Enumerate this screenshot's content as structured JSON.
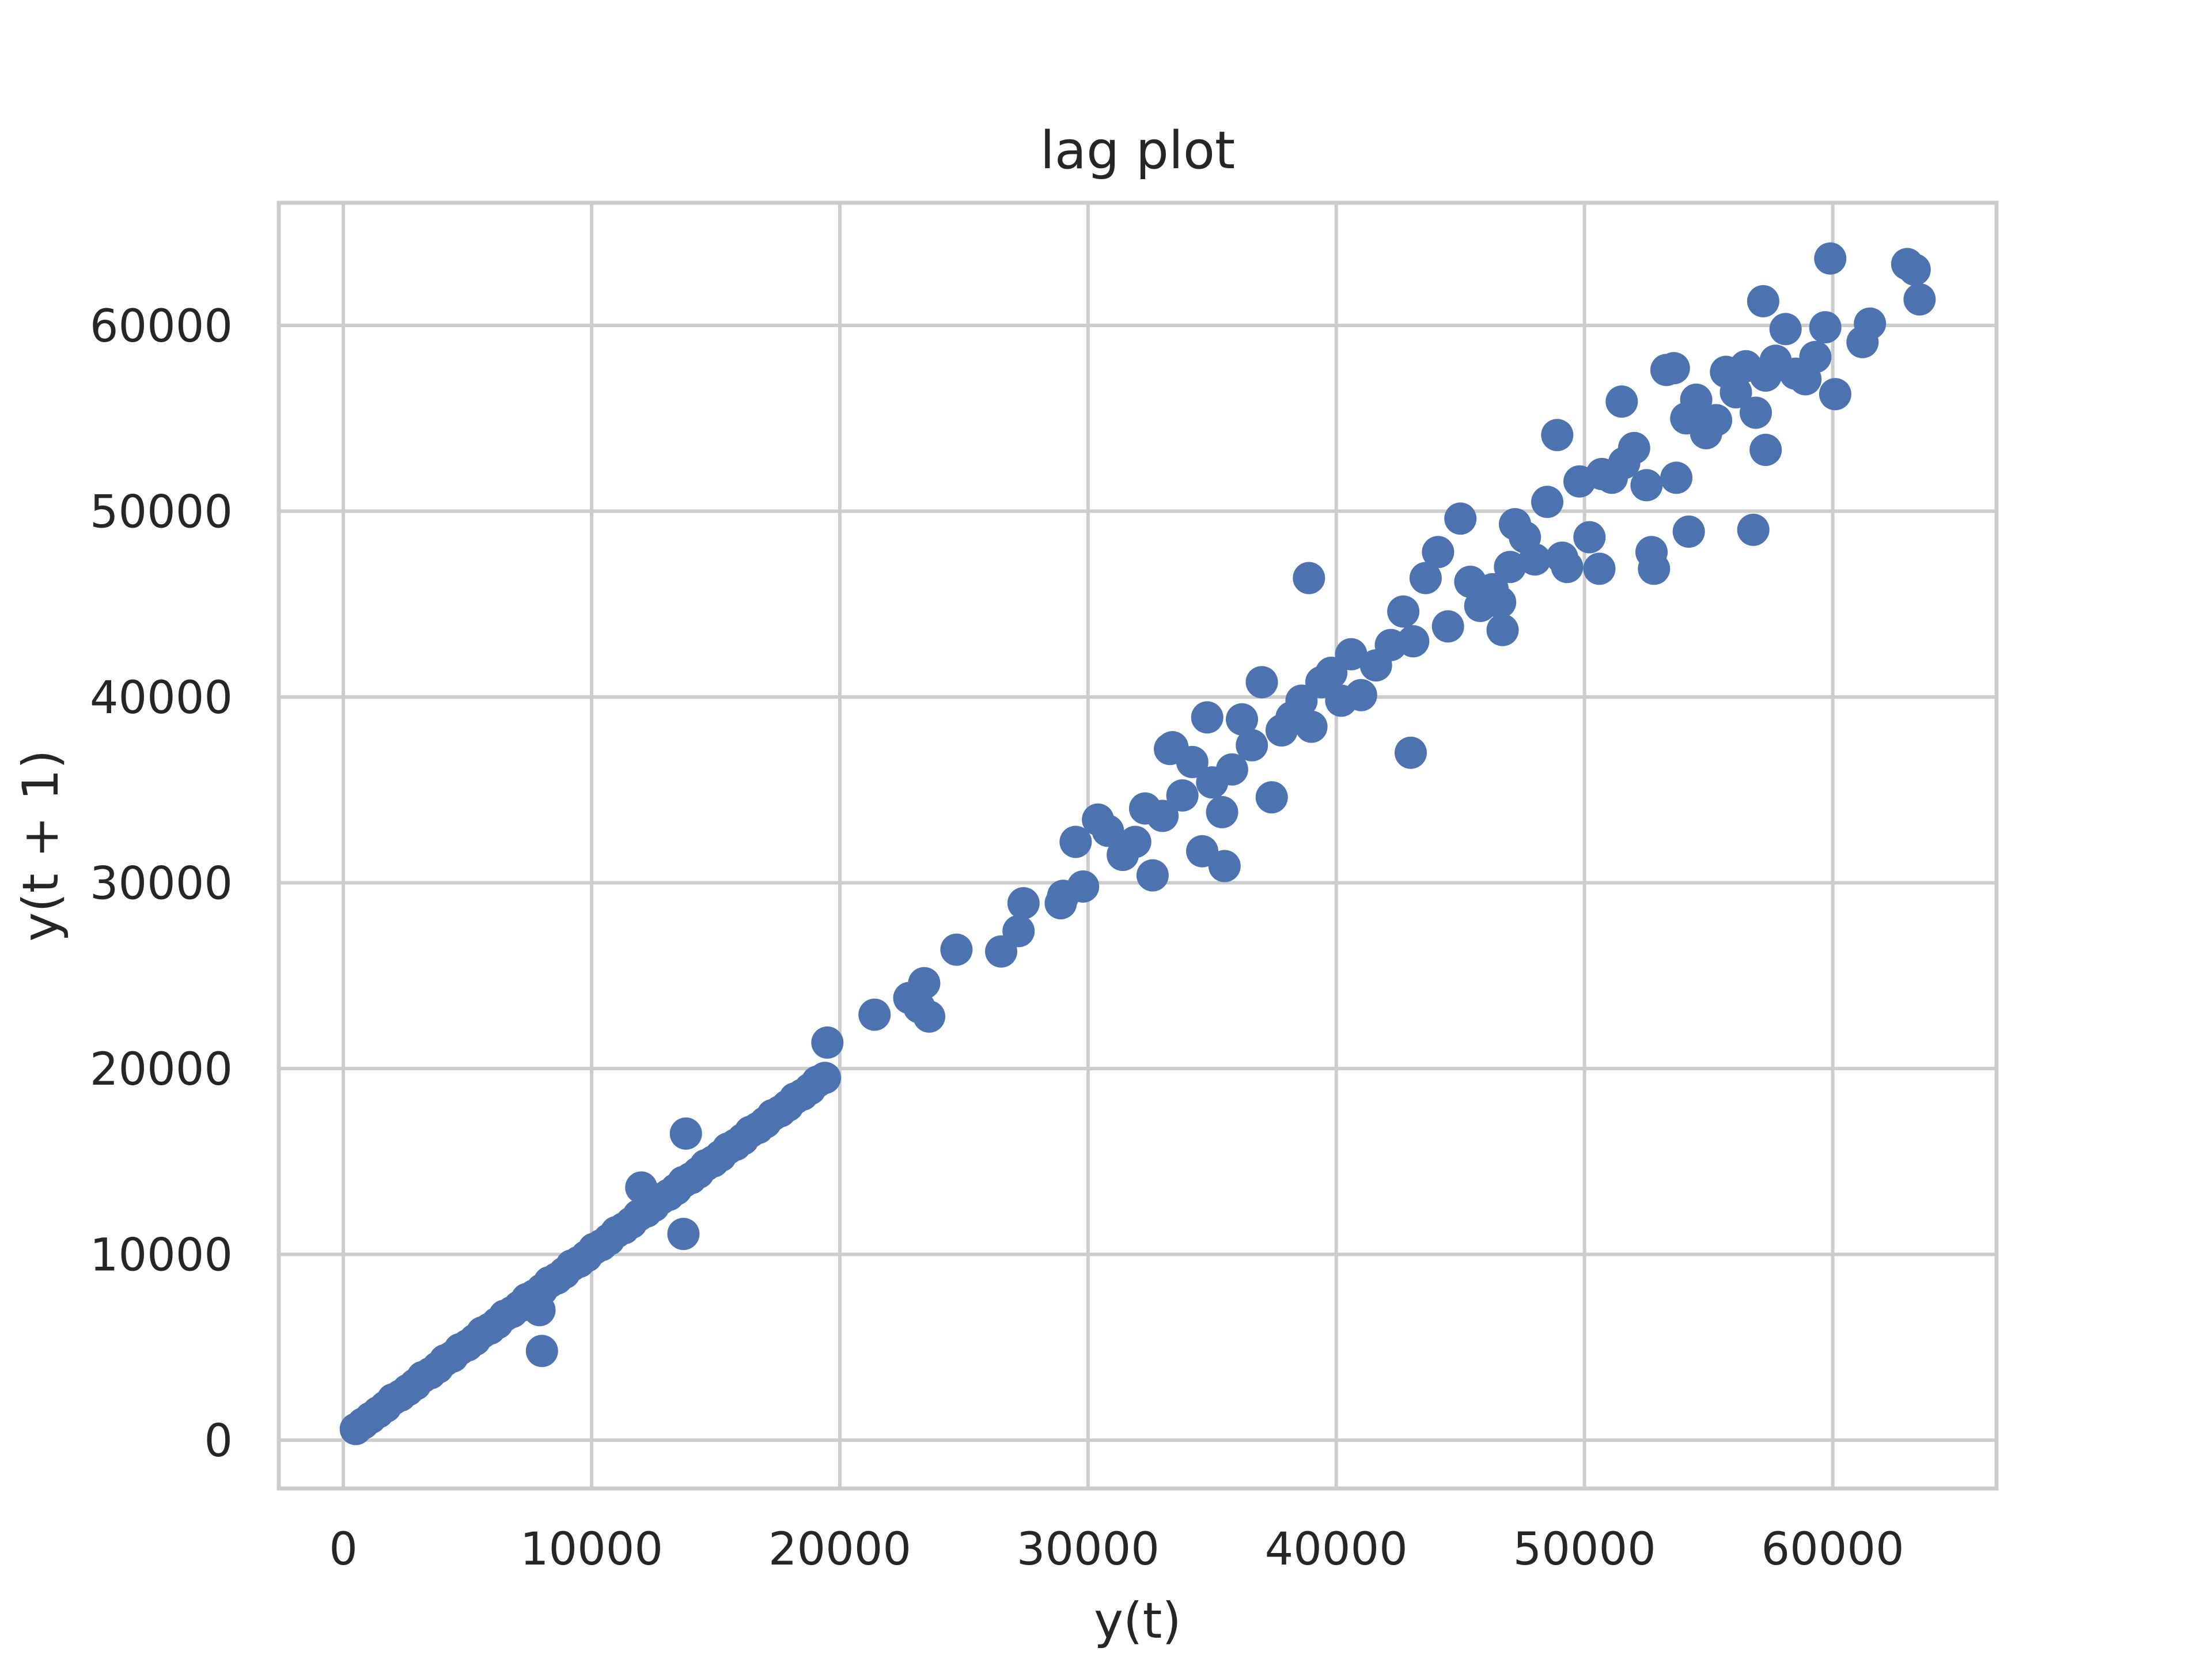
{
  "chart_data": {
    "type": "scatter",
    "title": "lag plot",
    "xlabel": "y(t)",
    "ylabel": "y(t + 1)",
    "xlim": [
      -2600,
      66600
    ],
    "ylim": [
      -2600,
      66600
    ],
    "x_ticks": [
      0,
      10000,
      20000,
      30000,
      40000,
      50000,
      60000
    ],
    "y_ticks": [
      0,
      10000,
      20000,
      30000,
      40000,
      50000,
      60000
    ],
    "x_tick_labels": [
      "0",
      "10000",
      "20000",
      "30000",
      "40000",
      "50000",
      "60000"
    ],
    "y_tick_labels": [
      "0",
      "10000",
      "20000",
      "30000",
      "40000",
      "50000",
      "60000"
    ],
    "grid": true,
    "color": "#4c72b0",
    "series": [
      {
        "x": [
          500,
          800,
          1100,
          1400,
          1700,
          2000,
          2300,
          2600,
          2900,
          3200,
          3500,
          3800,
          4100,
          4400,
          4700,
          5000,
          5300,
          5600,
          5900,
          6200,
          6500,
          6800,
          7100,
          7400,
          7700,
          8000,
          8300,
          8600,
          8900,
          9200,
          9500,
          9800,
          10100,
          10400,
          10700,
          11000,
          11300,
          11600,
          11900,
          12200,
          12500,
          12800,
          13100,
          13400,
          13700,
          14000,
          14300,
          14600,
          14900,
          15200,
          15500,
          15800,
          16100,
          16400,
          16700,
          17000,
          17300,
          17600,
          17900,
          18200,
          18500,
          18800,
          19100,
          19400,
          8000,
          13800,
          13700,
          12000,
          7900,
          19500,
          21400,
          22800,
          23200,
          23400,
          23600,
          24700,
          26500,
          27200,
          27400,
          28900,
          29000,
          29500,
          29800,
          30400,
          30800,
          31400,
          31900,
          32300,
          32600,
          33000,
          33400,
          33800,
          34200,
          34600,
          35000,
          35400,
          35800,
          36200,
          36600,
          37000,
          37400,
          37800,
          38200,
          38600,
          39000,
          39400,
          39800,
          40200,
          40600,
          41000,
          34800,
          35500,
          33300,
          38900,
          43000,
          41600,
          42200,
          42700,
          43100,
          43600,
          44100,
          44500,
          45000,
          45400,
          45800,
          46300,
          46700,
          47200,
          47600,
          48000,
          48500,
          48900,
          49300,
          49800,
          50200,
          50700,
          51100,
          51600,
          52000,
          52500,
          52800,
          46600,
          47000,
          49100,
          52700,
          50600,
          53300,
          53700,
          54100,
          54500,
          54900,
          55300,
          55700,
          56100,
          56500,
          56900,
          57300,
          57700,
          58100,
          58500,
          58900,
          59300,
          59700,
          60100,
          61200,
          61500,
          57200,
          56800,
          57300,
          59900,
          63000,
          63500,
          63300,
          54200,
          51500,
          53600
        ],
        "y": [
          600,
          900,
          1200,
          1500,
          1800,
          2200,
          2400,
          2700,
          3000,
          3400,
          3600,
          3900,
          4300,
          4500,
          4900,
          5100,
          5400,
          5800,
          6000,
          6300,
          6700,
          6900,
          7200,
          7600,
          7800,
          8100,
          8500,
          8700,
          9000,
          9400,
          9600,
          9900,
          10300,
          10500,
          10800,
          11200,
          11400,
          11700,
          12100,
          12300,
          12600,
          13000,
          13200,
          13500,
          13900,
          14100,
          14400,
          14800,
          15000,
          15300,
          15700,
          15900,
          16200,
          16600,
          16800,
          17100,
          17500,
          17700,
          18000,
          18400,
          18600,
          18900,
          19300,
          19500,
          4800,
          16500,
          11100,
          13600,
          7000,
          21400,
          22900,
          23800,
          23300,
          24600,
          22800,
          26400,
          26300,
          27400,
          28900,
          28900,
          29300,
          32200,
          29800,
          33400,
          32800,
          31500,
          32200,
          34000,
          30400,
          33600,
          37300,
          34700,
          36500,
          31700,
          35400,
          33800,
          36100,
          38800,
          37400,
          40800,
          34600,
          38200,
          38900,
          39800,
          38400,
          40800,
          41300,
          39800,
          42300,
          40100,
          38900,
          30900,
          37200,
          46400,
          37000,
          41700,
          42800,
          44600,
          43000,
          46400,
          47800,
          43800,
          49600,
          46200,
          44900,
          45800,
          43600,
          49300,
          48600,
          47400,
          50500,
          54100,
          47000,
          51600,
          48600,
          52000,
          51800,
          52600,
          53400,
          51400,
          46900,
          45100,
          47000,
          47500,
          47800,
          46900,
          57600,
          51800,
          55000,
          56000,
          54200,
          54900,
          57500,
          56400,
          57800,
          55300,
          57300,
          58100,
          59800,
          57400,
          57100,
          58300,
          59900,
          56300,
          59100,
          60100,
          61300,
          49000,
          53300,
          63600,
          63300,
          61400,
          63000,
          48900,
          55900,
          57700
        ]
      }
    ]
  }
}
